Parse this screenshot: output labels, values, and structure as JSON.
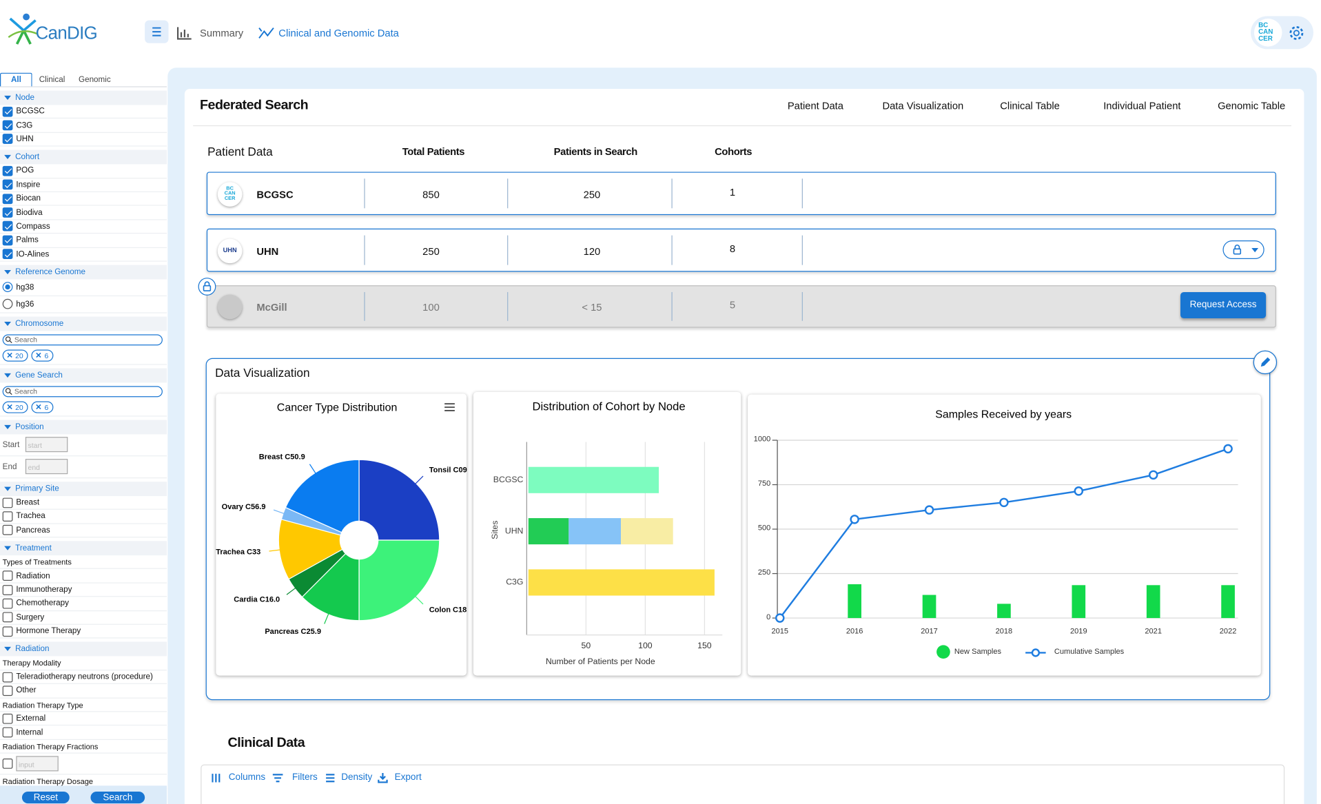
{
  "header": {
    "logo": "CanDIG",
    "nav": [
      "Summary",
      "Clinical and Genomic Data"
    ],
    "badge": [
      "BC",
      "CAN",
      "CER"
    ]
  },
  "sidebar": {
    "tabs": [
      "All",
      "Clinical",
      "Genomic"
    ],
    "sections": [
      {
        "title": "Node",
        "items": [
          {
            "label": "BCGSC",
            "checked": true
          },
          {
            "label": "C3G",
            "checked": true
          },
          {
            "label": "UHN",
            "checked": true
          }
        ]
      },
      {
        "title": "Cohort",
        "items": [
          {
            "label": "POG",
            "checked": true
          },
          {
            "label": "Inspire",
            "checked": true
          },
          {
            "label": "Biocan",
            "checked": true
          },
          {
            "label": "Biodiva",
            "checked": true
          },
          {
            "label": "Compass",
            "checked": true
          },
          {
            "label": "Palms",
            "checked": true
          },
          {
            "label": "IO-Alines",
            "checked": true
          }
        ]
      },
      {
        "title": "Reference Genome",
        "radios": [
          {
            "label": "hg38",
            "selected": true
          },
          {
            "label": "hg36",
            "selected": false
          }
        ]
      },
      {
        "title": "Chromosome",
        "search": "Search",
        "chips": [
          20,
          6
        ]
      },
      {
        "title": "Gene Search",
        "search": "Search",
        "chips": [
          20,
          6
        ]
      },
      {
        "title": "Position",
        "fields": [
          {
            "label": "Start",
            "placeholder": "start"
          },
          {
            "label": "End",
            "placeholder": "end"
          }
        ]
      },
      {
        "title": "Primary Site",
        "items": [
          {
            "label": "Breast",
            "checked": false
          },
          {
            "label": "Trachea",
            "checked": false
          },
          {
            "label": "Pancreas",
            "checked": false
          }
        ]
      },
      {
        "title": "Treatment",
        "groups": [
          {
            "label": "Types of Treatments",
            "items": [
              {
                "label": "Radiation",
                "checked": false
              },
              {
                "label": "Immunotherapy",
                "checked": false
              },
              {
                "label": "Chemotherapy",
                "checked": false
              },
              {
                "label": "Surgery",
                "checked": false
              },
              {
                "label": "Hormone Therapy",
                "checked": false
              }
            ]
          }
        ]
      },
      {
        "title": "Radiation",
        "groups": [
          {
            "label": "Therapy Modality",
            "items": [
              {
                "label": "Teleradiotherapy neutrons (procedure)",
                "checked": false
              },
              {
                "label": "Other",
                "checked": false
              }
            ]
          },
          {
            "label": "Radiation Therapy Type",
            "items": [
              {
                "label": "External",
                "checked": false
              },
              {
                "label": "Internal",
                "checked": false
              }
            ]
          },
          {
            "label": "Radiation Therapy Fractions",
            "input": "input"
          },
          {
            "label": "Radiation Therapy Dosage"
          }
        ]
      }
    ],
    "buttons": [
      "Reset",
      "Search"
    ]
  },
  "federated_search": {
    "title": "Federated Search",
    "tabs": [
      "Patient Data",
      "Data Visualization",
      "Clinical Table",
      "Individual Patient",
      "Genomic Table"
    ],
    "table": {
      "columns": [
        "Patient Data",
        "Total Patients",
        "Patients in Search",
        "Cohorts"
      ],
      "rows": [
        {
          "logo": [
            "BC",
            "CAN",
            "CER"
          ],
          "name": "BCGSC",
          "total": 850,
          "in_search": 250,
          "cohorts": 1
        },
        {
          "logo": [
            "UHN"
          ],
          "name": "UHN",
          "total": 250,
          "in_search": 120,
          "cohorts": 8
        },
        {
          "name": "McGill",
          "total": 100,
          "in_search": "< 15",
          "cohorts": 5,
          "action": "Request Access"
        }
      ]
    }
  },
  "data_visualization": {
    "title": "Data Visualization"
  },
  "chart_data": [
    {
      "type": "pie",
      "title": "Cancer Type Distribution",
      "categories": [
        "Tonsil C09",
        "Colon C18",
        "Pancreas C25.9",
        "Cardia C16.0",
        "Trachea C33",
        "Ovary C56.9",
        "Breast C50.9"
      ],
      "values": [
        90,
        90,
        45,
        16,
        44,
        9,
        66
      ],
      "colors": [
        "#1b3fc4",
        "#3df27a",
        "#14c94e",
        "#0b8a33",
        "#ffc800",
        "#7ab8f5",
        "#0a7cf0"
      ]
    },
    {
      "type": "stacked_bar_h",
      "title": "Distribution of Cohort by Node",
      "xlabel": "Number of Patients per Node",
      "ylabel": "Sites",
      "categories": [
        "BCGSC",
        "UHN",
        "C3G"
      ],
      "xlim": [
        0,
        165
      ],
      "xticks": [
        50,
        100,
        150
      ],
      "grid": true,
      "bars": [
        [
          {
            "value": 110,
            "color": "#7dfcbf"
          }
        ],
        [
          {
            "value": 34,
            "color": "#22cc55"
          },
          {
            "value": 44,
            "color": "#86c3f7"
          },
          {
            "value": 44,
            "color": "#f8eda4"
          }
        ],
        [
          {
            "value": 157,
            "color": "#fde047"
          }
        ]
      ]
    },
    {
      "type": "combo",
      "title": "Samples Received by years",
      "categories": [
        "2015",
        "2016",
        "2017",
        "2018",
        "2019",
        "2021",
        "2022"
      ],
      "ylim": [
        0,
        1000
      ],
      "yticks": [
        0,
        250,
        500,
        750,
        1000
      ],
      "grid": true,
      "series": [
        {
          "name": "New Samples",
          "type": "bar",
          "color": "#12d94a",
          "values": [
            0,
            190,
            130,
            80,
            185,
            185,
            185
          ]
        },
        {
          "name": "Cumulative Samples",
          "type": "line",
          "color": "#1f7de0",
          "values": [
            0,
            555,
            608,
            650,
            714,
            805,
            952
          ]
        }
      ]
    }
  ],
  "clinical_data": {
    "title": "Clinical Data",
    "toolbar": [
      "Columns",
      "Filters",
      "Density",
      "Export"
    ]
  }
}
